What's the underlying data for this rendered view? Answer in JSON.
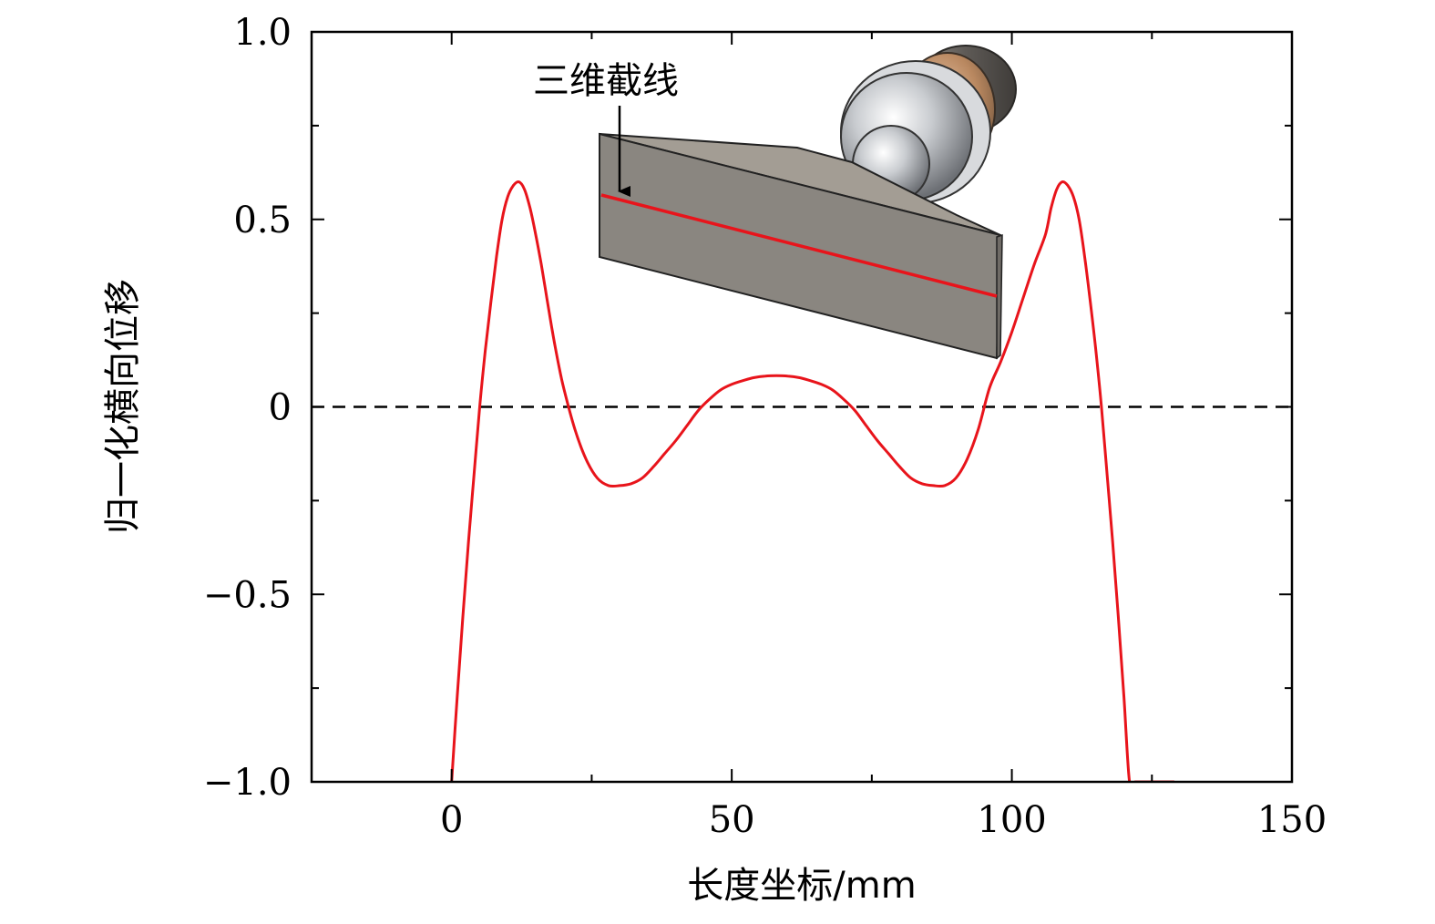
{
  "chart_data": {
    "type": "line",
    "title": "",
    "xlabel": "长度坐标/mm",
    "ylabel": "归一化横向位移",
    "xlim": [
      -25,
      150
    ],
    "ylim": [
      -1.0,
      1.0
    ],
    "xticks": [
      0,
      50,
      100,
      150
    ],
    "xtick_labels": [
      "0",
      "50",
      "100",
      "150"
    ],
    "yticks": [
      1.0,
      0.5,
      0,
      -0.5,
      -1.0
    ],
    "ytick_labels": [
      "1.0",
      "0.5",
      "0",
      "−0.5",
      "−1.0"
    ],
    "x_minor_ticks": [
      -25,
      25,
      75,
      125
    ],
    "y_minor_ticks": [
      0.75,
      0.25,
      -0.25,
      -0.75
    ],
    "grid": false,
    "reference_line": {
      "y": 0,
      "style": "dashed",
      "color": "#000000"
    },
    "series": [
      {
        "color": "#e8141b",
        "x": [
          0,
          1,
          2,
          3,
          4,
          5,
          6,
          7,
          8,
          9,
          10,
          11,
          12,
          13,
          14,
          15,
          16,
          17,
          18,
          19,
          20,
          22,
          24,
          26,
          28,
          30,
          32,
          34,
          36,
          38,
          40,
          42,
          44,
          46,
          48,
          50,
          52,
          54,
          56,
          58,
          60,
          62,
          64,
          66,
          68,
          70,
          72,
          74,
          76,
          78,
          80,
          82,
          84,
          86,
          88,
          90,
          92,
          94,
          96,
          98,
          100,
          102,
          104,
          106,
          107,
          108,
          109,
          110,
          111,
          112,
          113,
          114,
          115,
          116,
          117,
          118,
          119,
          120,
          121,
          122,
          123,
          124,
          125,
          126,
          127,
          128,
          129
        ],
        "y": [
          -1.0,
          -0.77,
          -0.56,
          -0.36,
          -0.18,
          0.0,
          0.15,
          0.28,
          0.4,
          0.5,
          0.56,
          0.59,
          0.6,
          0.58,
          0.53,
          0.46,
          0.38,
          0.29,
          0.2,
          0.12,
          0.05,
          -0.06,
          -0.14,
          -0.19,
          -0.21,
          -0.21,
          -0.205,
          -0.19,
          -0.16,
          -0.125,
          -0.09,
          -0.05,
          -0.01,
          0.02,
          0.045,
          0.06,
          0.07,
          0.078,
          0.082,
          0.083,
          0.082,
          0.078,
          0.07,
          0.06,
          0.045,
          0.02,
          -0.01,
          -0.05,
          -0.09,
          -0.125,
          -0.16,
          -0.19,
          -0.205,
          -0.21,
          -0.21,
          -0.19,
          -0.14,
          -0.06,
          0.05,
          0.12,
          0.2,
          0.29,
          0.38,
          0.46,
          0.53,
          0.58,
          0.6,
          0.59,
          0.56,
          0.5,
          0.4,
          0.28,
          0.15,
          0.0,
          -0.18,
          -0.36,
          -0.56,
          -0.77,
          -1.0,
          -1.0,
          -1.0,
          -1.0,
          -1.0,
          -1.0,
          -1.0,
          -1.0,
          -1.0
        ]
      }
    ],
    "annotations": [
      {
        "text": "三维截线",
        "arrow": true
      }
    ],
    "inset": {
      "description_color_plate": "#8a8680",
      "plate_top_color": "#a39d94",
      "plate_edge_color": "#6f6b66",
      "section_line_color": "#e8141b"
    }
  }
}
